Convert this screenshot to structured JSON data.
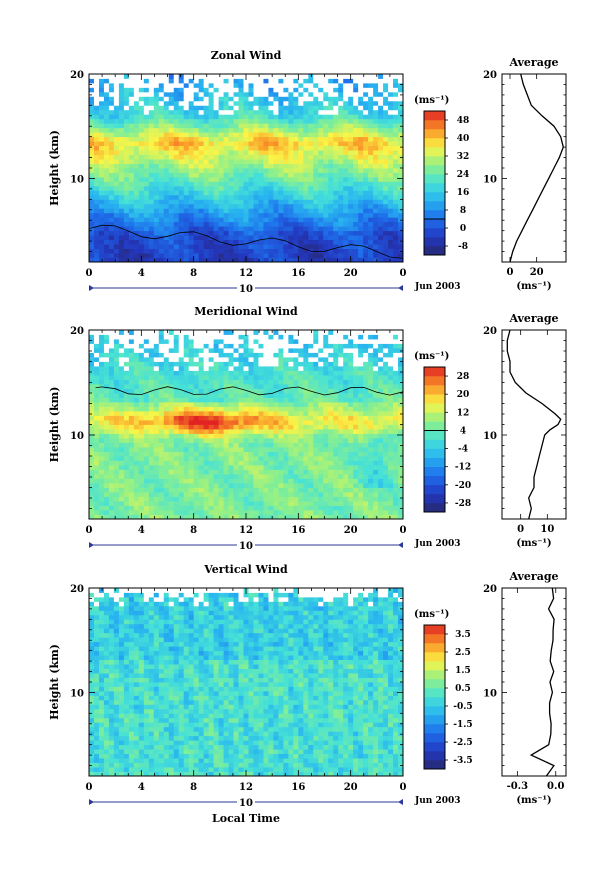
{
  "chart_data": [
    {
      "type": "heatmap",
      "title": "Zonal Wind",
      "ylabel": "Height (km)",
      "unit": "(ms⁻¹)",
      "x_ticks": [
        "0",
        "4",
        "8",
        "12",
        "16",
        "20",
        "0"
      ],
      "y_ticks": [
        "20",
        "10"
      ],
      "day_label": "10",
      "month_label": "Jun 2003",
      "colorbar_ticks": [
        "48",
        "40",
        "32",
        "24",
        "16",
        "8",
        "0",
        "-8"
      ],
      "colorbar_range": [
        -12,
        52
      ],
      "profile": {
        "title": "Average",
        "xlabel": "(ms⁻¹)",
        "x_ticks": [
          "0",
          "20"
        ],
        "xlim": [
          -6,
          42
        ],
        "heights": [
          2,
          3,
          4,
          5,
          6,
          7,
          8,
          9,
          10,
          11,
          12,
          13,
          14,
          15,
          16,
          17,
          18,
          19,
          20
        ],
        "values": [
          0,
          2,
          5,
          9,
          13,
          17,
          21,
          25,
          29,
          33,
          37,
          40,
          38,
          33,
          24,
          16,
          13,
          10,
          8
        ]
      }
    },
    {
      "type": "heatmap",
      "title": "Meridional Wind",
      "ylabel": "Height (km)",
      "unit": "(ms⁻¹)",
      "x_ticks": [
        "0",
        "4",
        "8",
        "12",
        "16",
        "20",
        "0"
      ],
      "y_ticks": [
        "20",
        "10"
      ],
      "day_label": "10",
      "month_label": "Jun 2003",
      "colorbar_ticks": [
        "28",
        "20",
        "12",
        "4",
        "-4",
        "-12",
        "-20",
        "-28"
      ],
      "colorbar_range": [
        -32,
        32
      ],
      "profile": {
        "title": "Average",
        "xlabel": "(ms⁻¹)",
        "x_ticks": [
          "0",
          "10"
        ],
        "xlim": [
          -7,
          17
        ],
        "heights": [
          2,
          3,
          4,
          5,
          6,
          7,
          8,
          9,
          10,
          10.5,
          11,
          11.5,
          12,
          13,
          14,
          15,
          16,
          17,
          18,
          19,
          20
        ],
        "values": [
          3,
          4,
          3,
          5,
          5,
          6,
          7,
          8,
          9,
          11,
          14,
          15,
          13,
          8,
          2,
          -2,
          -4,
          -4,
          -5,
          -5,
          -4
        ]
      }
    },
    {
      "type": "heatmap",
      "title": "Vertical Wind",
      "ylabel": "Height (km)",
      "xlabel": "Local Time",
      "unit": "(ms⁻¹)",
      "x_ticks": [
        "0",
        "4",
        "8",
        "12",
        "16",
        "20",
        "0"
      ],
      "y_ticks": [
        "20",
        "10"
      ],
      "day_label": "10",
      "month_label": "Jun 2003",
      "colorbar_ticks": [
        "3.5",
        "2.5",
        "1.5",
        "0.5",
        "-0.5",
        "-1.5",
        "-2.5",
        "-3.5"
      ],
      "colorbar_range": [
        -4,
        4
      ],
      "profile": {
        "title": "Average",
        "xlabel": "(ms⁻¹)",
        "x_ticks": [
          "-0.3",
          "0.0"
        ],
        "xlim": [
          -0.42,
          0.08
        ],
        "heights": [
          2,
          3,
          4,
          5,
          6,
          7,
          8,
          9,
          10,
          11,
          12,
          13,
          14,
          15,
          16,
          17,
          18,
          19,
          20
        ],
        "values": [
          -0.08,
          -0.02,
          -0.2,
          -0.06,
          -0.04,
          -0.04,
          -0.05,
          -0.04,
          -0.03,
          -0.05,
          -0.02,
          -0.04,
          -0.04,
          -0.03,
          -0.03,
          -0.02,
          -0.05,
          -0.01,
          -0.03
        ]
      }
    }
  ]
}
